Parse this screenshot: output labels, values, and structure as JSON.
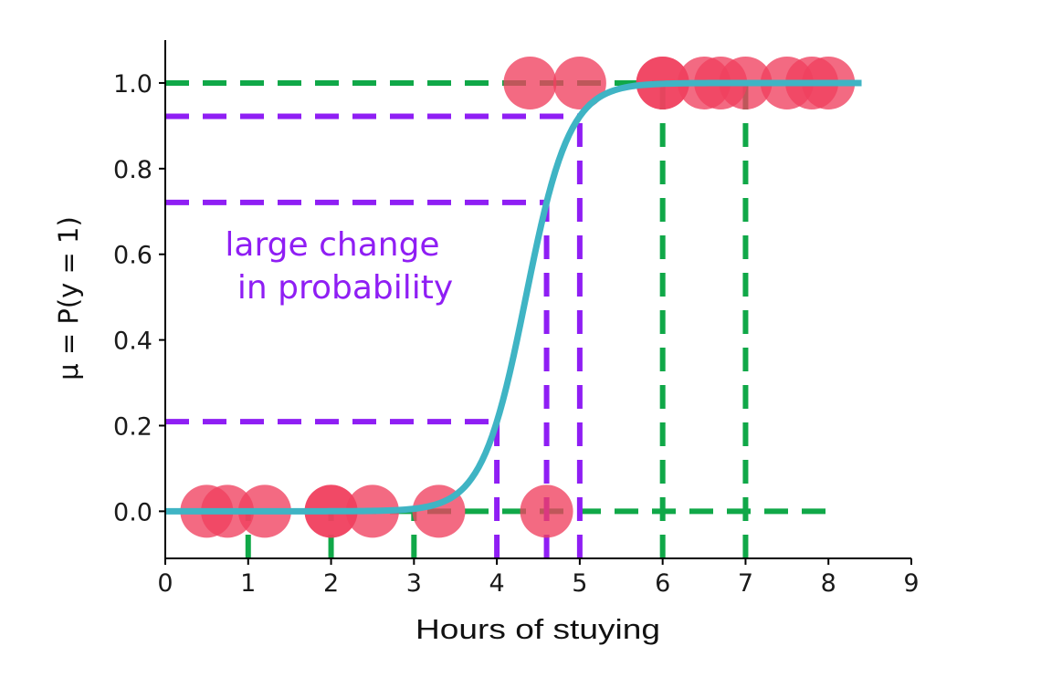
{
  "chart_data": {
    "type": "scatter",
    "xlabel": "Hours of stuying",
    "ylabel": "μ = P(y = 1)",
    "xlim": [
      0,
      9
    ],
    "ylim": [
      -0.11,
      1.1
    ],
    "xticks": [
      "0",
      "1",
      "2",
      "3",
      "4",
      "5",
      "6",
      "7",
      "8",
      "9"
    ],
    "yticks": [
      "0.0",
      "0.2",
      "0.4",
      "0.6",
      "0.8",
      "1.0"
    ],
    "grid": false,
    "points": {
      "x": [
        0.5,
        0.75,
        1.2,
        2.0,
        2.0,
        2.5,
        3.3,
        4.6,
        4.4,
        5.0,
        6.0,
        6.0,
        6.5,
        6.7,
        7.0,
        7.5,
        7.8,
        8.0
      ],
      "y": [
        0,
        0,
        0,
        0,
        0,
        0,
        0,
        0,
        1,
        1,
        1,
        1,
        1,
        1,
        1,
        1,
        1,
        1
      ],
      "color": "#f0405f"
    },
    "curve": {
      "kind": "logistic",
      "x_range": [
        0,
        8.4
      ],
      "midpoint": 4.35,
      "steepness": 3.8,
      "color": "#3fb4c4"
    },
    "reference_lines": {
      "green_color": "#10a848",
      "purple_color": "#8f1ef4",
      "green_vertical_x": [
        1,
        2,
        3,
        6,
        7
      ],
      "purple_vertical_x": [
        4,
        4.6,
        5
      ],
      "green_horizontal_y": [
        0,
        1
      ]
    },
    "annotation": {
      "lines": [
        "large change",
        "in probability"
      ],
      "color": "#8f1ef4"
    }
  }
}
